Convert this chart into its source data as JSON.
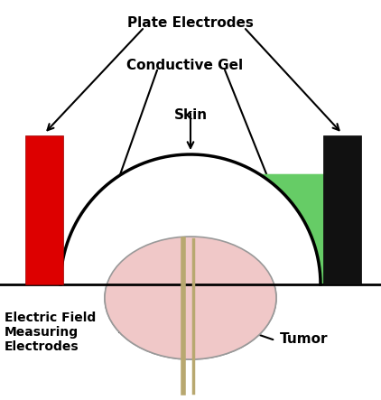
{
  "bg_color": "#ffffff",
  "skin_color": "#000000",
  "gel_color": "#66cc66",
  "tumor_color": "#f0c8c8",
  "tumor_edge_color": "#999999",
  "electrode_left_color": "#dd0000",
  "electrode_right_color": "#111111",
  "needle_color": "#b8a870",
  "base_line_color": "#000000",
  "label_plate": "Plate Electrodes",
  "label_gel": "Conductive Gel",
  "label_skin": "Skin",
  "label_efm": "Electric Field\nMeasuring\nElectrodes",
  "label_tumor": "Tumor",
  "fontsize": 11,
  "fontsize_small": 10
}
